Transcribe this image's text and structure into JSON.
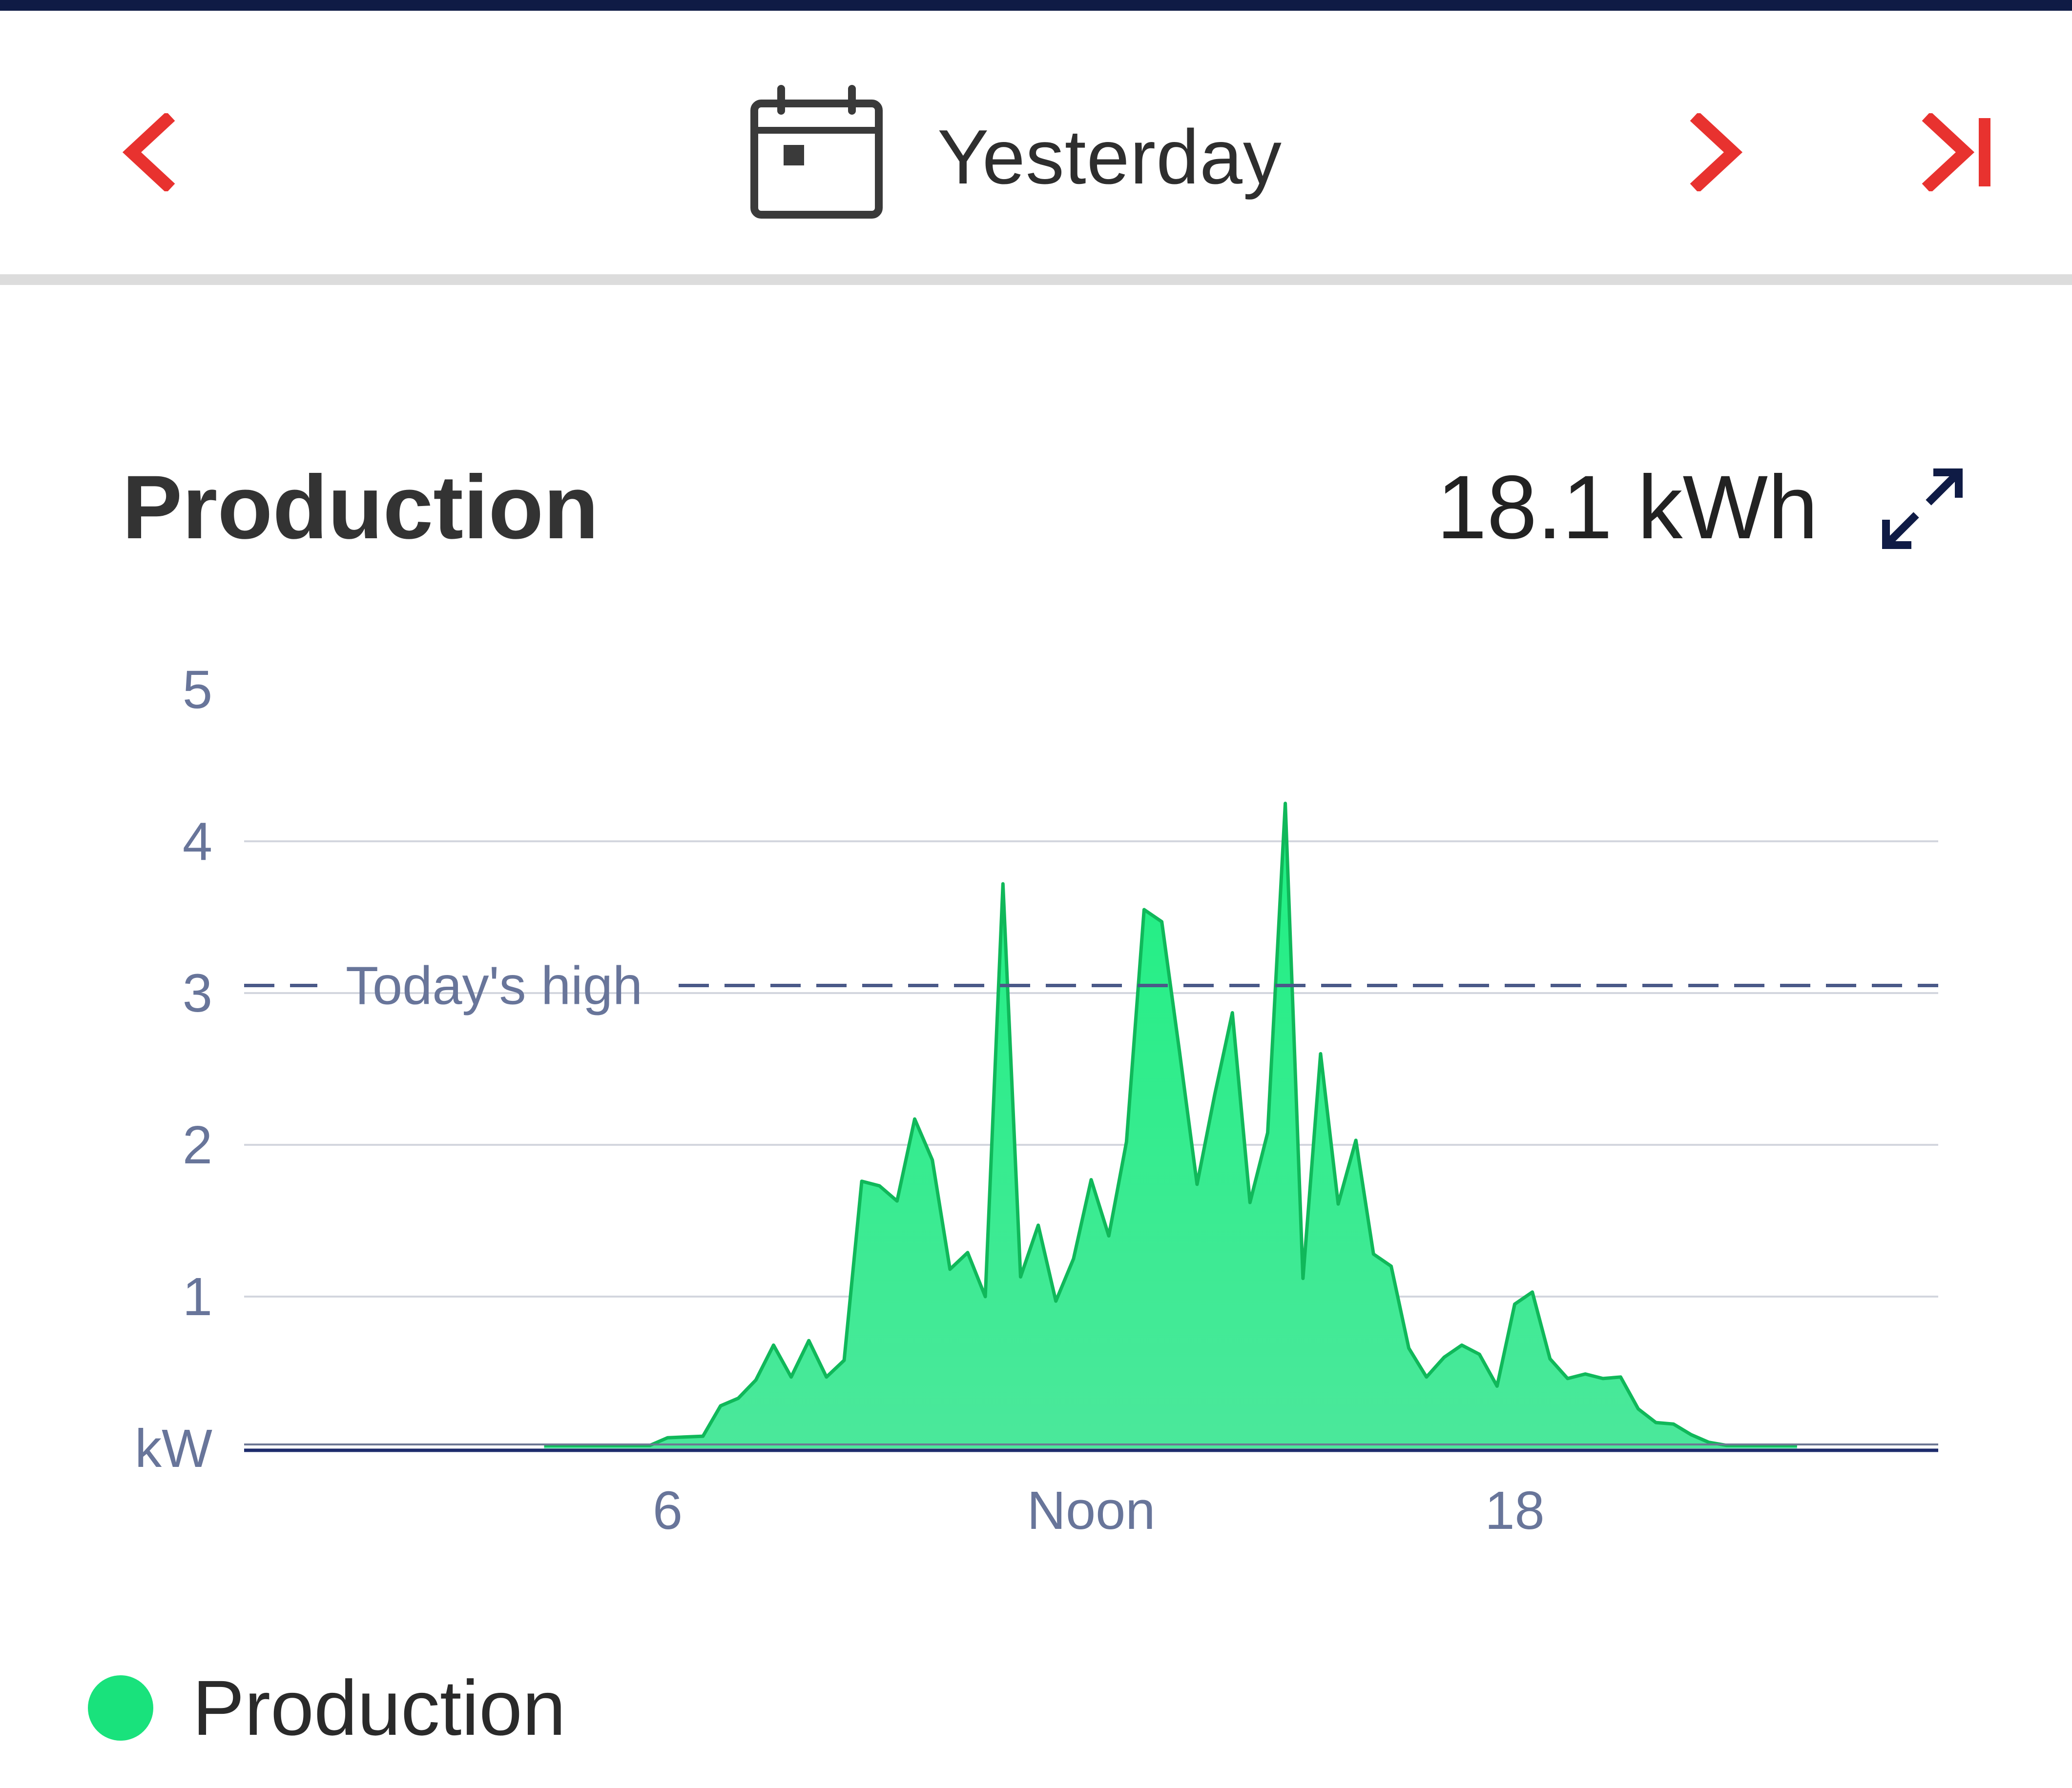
{
  "nav": {
    "date_label": "Yesterday",
    "prev_icon": "chevron-left-icon",
    "calendar_icon": "calendar-icon",
    "next_icon": "chevron-right-icon",
    "last_icon": "skip-to-end-icon",
    "accent_color": "#e8322f"
  },
  "card": {
    "title": "Production",
    "total": "18.1 kWh",
    "expand_icon": "expand-icon"
  },
  "legend": {
    "label": "Production",
    "color": "#19e27c"
  },
  "chart_data": {
    "type": "area",
    "ylabel": "kW",
    "ylim": [
      0,
      5
    ],
    "yticks": [
      "5",
      "4",
      "3",
      "2",
      "1"
    ],
    "xtick_labels": [
      {
        "x": 6,
        "label": "6"
      },
      {
        "x": 12,
        "label": "Noon"
      },
      {
        "x": 18,
        "label": "18"
      }
    ],
    "xlim": [
      0,
      24
    ],
    "grid": true,
    "reference_line": {
      "label": "Today's high",
      "value": 3.05
    },
    "series": [
      {
        "name": "Production",
        "color": "#19e27c",
        "x": [
          4.25,
          5.75,
          6.0,
          6.5,
          6.75,
          7.0,
          7.25,
          7.5,
          7.75,
          8.0,
          8.25,
          8.5,
          8.75,
          9.0,
          9.25,
          9.5,
          9.75,
          10.0,
          10.25,
          10.5,
          10.75,
          11.0,
          11.25,
          11.5,
          11.75,
          12.0,
          12.25,
          12.5,
          12.75,
          13.0,
          13.25,
          13.5,
          13.75,
          14.0,
          14.25,
          14.5,
          14.75,
          15.0,
          15.25,
          15.5,
          15.75,
          16.0,
          16.25,
          16.5,
          16.75,
          17.0,
          17.25,
          17.5,
          17.75,
          18.0,
          18.25,
          18.5,
          18.75,
          19.0,
          19.25,
          19.5,
          19.75,
          20.0,
          20.25,
          20.5,
          20.75,
          21.0,
          21.25,
          21.5,
          21.75,
          22.0
        ],
        "values": [
          0.02,
          0.02,
          0.07,
          0.08,
          0.28,
          0.33,
          0.45,
          0.68,
          0.47,
          0.71,
          0.47,
          0.58,
          1.76,
          1.73,
          1.63,
          2.17,
          1.9,
          1.18,
          1.29,
          1.0,
          3.72,
          1.13,
          1.47,
          0.97,
          1.25,
          1.77,
          1.4,
          2.02,
          3.55,
          3.47,
          2.62,
          1.74,
          2.33,
          2.87,
          1.62,
          2.08,
          4.25,
          1.12,
          2.6,
          1.61,
          2.03,
          1.28,
          1.2,
          0.66,
          0.47,
          0.6,
          0.68,
          0.62,
          0.41,
          0.95,
          1.03,
          0.59,
          0.46,
          0.49,
          0.46,
          0.47,
          0.26,
          0.17,
          0.16,
          0.09,
          0.04,
          0.02,
          0.02,
          0.02,
          0.02,
          0.02
        ]
      }
    ]
  }
}
